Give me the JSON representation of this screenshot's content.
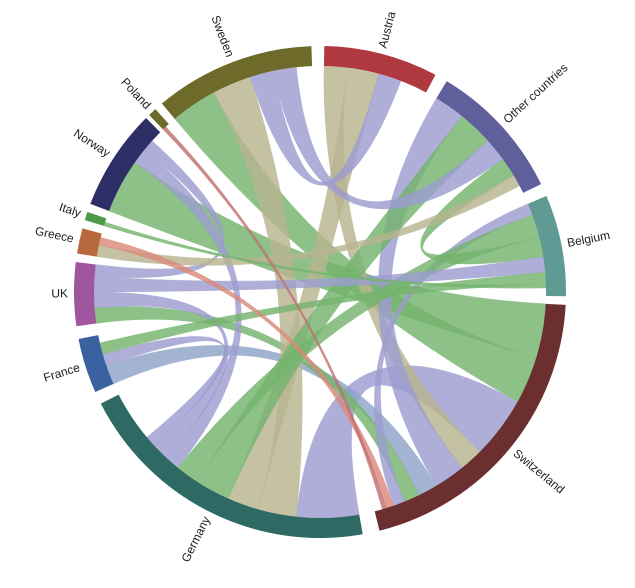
{
  "chart_data": {
    "type": "chord",
    "groups": [
      {
        "name": "Austria",
        "color": "#b0393f",
        "start": 1,
        "value": 27
      },
      {
        "name": "Other countries",
        "color": "#5f5f9c",
        "start": 31,
        "value": 33
      },
      {
        "name": "Belgium",
        "color": "#5f9a94",
        "start": 67,
        "value": 24
      },
      {
        "name": "Switzerland",
        "color": "#6b2f30",
        "start": 93,
        "value": 73
      },
      {
        "name": "Germany",
        "color": "#2e6a63",
        "start": 170,
        "value": 73
      },
      {
        "name": "France",
        "color": "#3b62a0",
        "start": 246,
        "value": 13
      },
      {
        "name": "UK",
        "color": "#a0569e",
        "start": 262,
        "value": 15
      },
      {
        "name": "Greece",
        "color": "#b86a3e",
        "start": 279,
        "value": 6
      },
      {
        "name": "Italy",
        "color": "#4f9a4a",
        "start": 287,
        "value": 2
      },
      {
        "name": "Norway",
        "color": "#2e2f66",
        "start": 291,
        "value": 24
      },
      {
        "name": "Poland",
        "color": "#6b6b2a",
        "start": 316,
        "value": 2
      },
      {
        "name": "Sweden",
        "color": "#6e6b2a",
        "start": 320,
        "value": 38
      }
    ],
    "chords": [
      {
        "source": "Switzerland",
        "target": "Norway",
        "value": 14,
        "color": "#74b36e"
      },
      {
        "source": "Switzerland",
        "target": "Sweden",
        "value": 12,
        "color": "#74b36e"
      },
      {
        "source": "Switzerland",
        "target": "Germany",
        "value": 16,
        "color": "#9c9cd0"
      },
      {
        "source": "Switzerland",
        "target": "Austria",
        "value": 6,
        "color": "#b8b590"
      },
      {
        "source": "Switzerland",
        "target": "Other countries",
        "value": 8,
        "color": "#9c9cd0"
      },
      {
        "source": "Switzerland",
        "target": "France",
        "value": 5,
        "color": "#8fa3c8"
      },
      {
        "source": "Switzerland",
        "target": "UK",
        "value": 4,
        "color": "#74b36e"
      },
      {
        "source": "Switzerland",
        "target": "Belgium",
        "value": 3,
        "color": "#9c9cd0"
      },
      {
        "source": "Germany",
        "target": "Sweden",
        "value": 10,
        "color": "#b8b590"
      },
      {
        "source": "Germany",
        "target": "Austria",
        "value": 8,
        "color": "#b8b590"
      },
      {
        "source": "Germany",
        "target": "Other countries",
        "value": 9,
        "color": "#74b36e"
      },
      {
        "source": "Germany",
        "target": "Belgium",
        "value": 6,
        "color": "#74b36e"
      },
      {
        "source": "Germany",
        "target": "Norway",
        "value": 4,
        "color": "#9c9cd0"
      },
      {
        "source": "Germany",
        "target": "UK",
        "value": 4,
        "color": "#9c9cd0"
      },
      {
        "source": "Germany",
        "target": "France",
        "value": 3,
        "color": "#9c9cd0"
      },
      {
        "source": "Austria",
        "target": "Sweden",
        "value": 6,
        "color": "#9c9cd0"
      },
      {
        "source": "Other countries",
        "target": "Sweden",
        "value": 6,
        "color": "#9c9cd0"
      },
      {
        "source": "Other countries",
        "target": "Belgium",
        "value": 5,
        "color": "#74b36e"
      },
      {
        "source": "Belgium",
        "target": "UK",
        "value": 4,
        "color": "#9c9cd0"
      },
      {
        "source": "Belgium",
        "target": "France",
        "value": 3,
        "color": "#74b36e"
      },
      {
        "source": "Norway",
        "target": "UK",
        "value": 3,
        "color": "#9c9cd0"
      },
      {
        "source": "Greece",
        "target": "Other countries",
        "value": 3,
        "color": "#b8b590"
      },
      {
        "source": "Greece",
        "target": "Switzerland",
        "value": 2,
        "color": "#d98a7a"
      },
      {
        "source": "Italy",
        "target": "Belgium",
        "value": 1,
        "color": "#74b36e"
      },
      {
        "source": "Poland",
        "target": "Switzerland",
        "value": 1,
        "color": "#c07070"
      }
    ]
  }
}
